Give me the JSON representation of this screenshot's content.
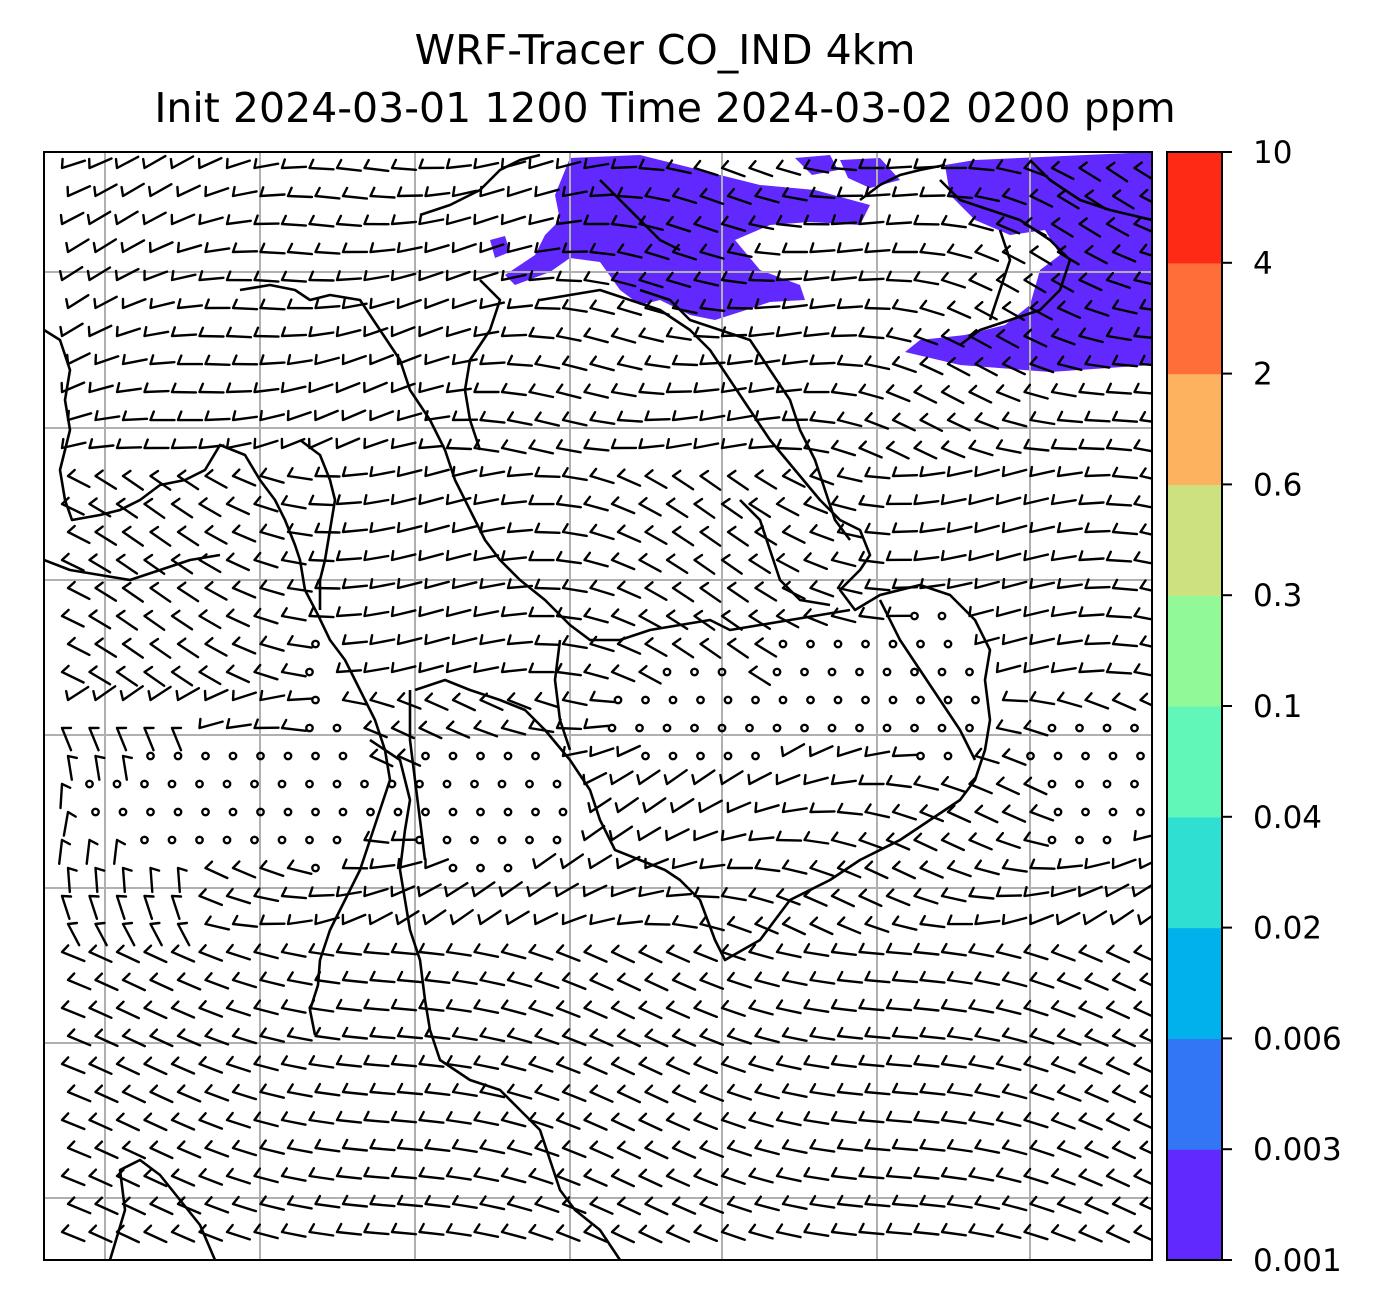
{
  "title": {
    "line1": "WRF-Tracer CO_IND 4km",
    "line2": "Init 2024-03-01 1200 Time 2024-03-02 0200 ppm"
  },
  "colorbar": {
    "levels": [
      "0.001",
      "0.003",
      "0.006",
      "0.02",
      "0.04",
      "0.1",
      "0.3",
      "0.6",
      "2",
      "4",
      "10"
    ],
    "colors": [
      "#6229ff",
      "#3376f5",
      "#01b1ec",
      "#2fe0d2",
      "#61f7b8",
      "#91f996",
      "#cee180",
      "#fdb25f",
      "#ff6e39",
      "#ff2a15"
    ]
  },
  "map": {
    "tracer_fill_color": "#6229ff",
    "grid_color": "#b0b0b0",
    "features": [
      "coastlines",
      "country-borders",
      "lat-lon-gridlines",
      "wind-barbs",
      "calm-wind-circles",
      "tracer-concentration-fill"
    ]
  }
}
